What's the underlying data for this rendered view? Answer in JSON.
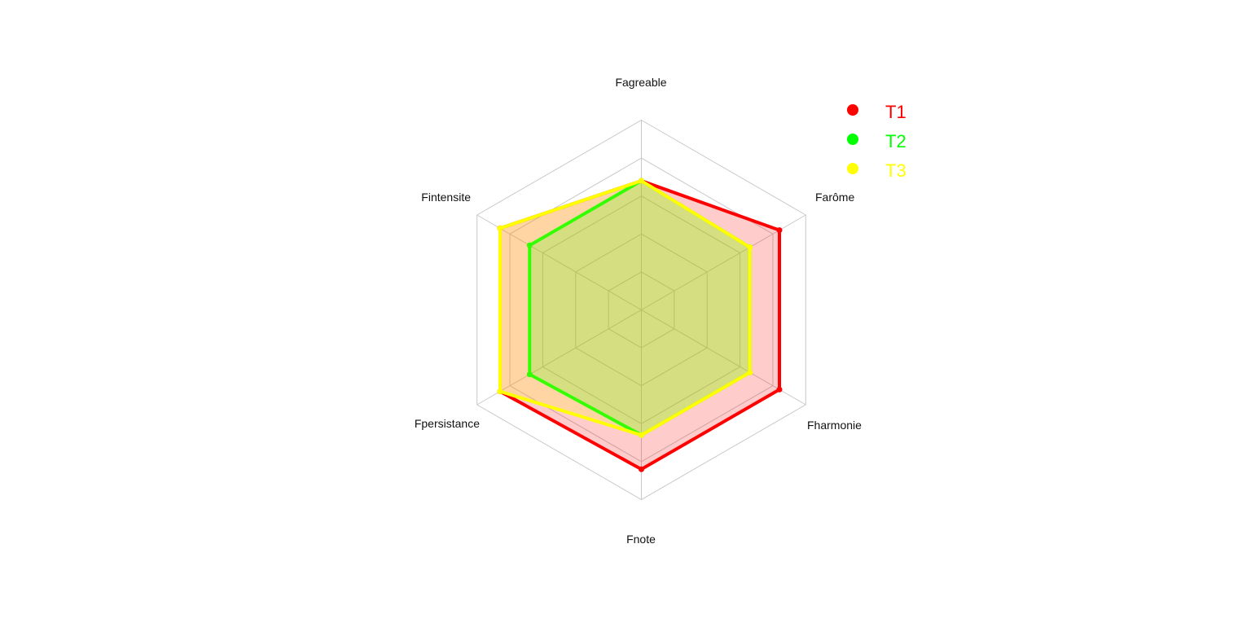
{
  "chart_data": {
    "type": "radar",
    "axes": [
      "Fagreable",
      "Farôme",
      "Fharmonie",
      "Fnote",
      "Fpersistance",
      "Fintensite"
    ],
    "rlim": [
      0,
      5
    ],
    "grid_levels": 5,
    "series": [
      {
        "name": "T1",
        "color": "#ff0000",
        "fill": "rgba(255,0,0,0.2)",
        "values": [
          3.4,
          4.2,
          4.2,
          4.2,
          4.3,
          4.3
        ]
      },
      {
        "name": "T2",
        "color": "#00ff00",
        "fill": "rgba(0,255,0,0.2)",
        "values": [
          3.4,
          3.3,
          3.3,
          3.3,
          3.4,
          3.4
        ]
      },
      {
        "name": "T3",
        "color": "#ffff00",
        "fill": "rgba(255,255,0,0.2)",
        "values": [
          3.4,
          3.3,
          3.3,
          3.3,
          4.3,
          4.3
        ]
      }
    ],
    "legend_position": "top-right"
  }
}
